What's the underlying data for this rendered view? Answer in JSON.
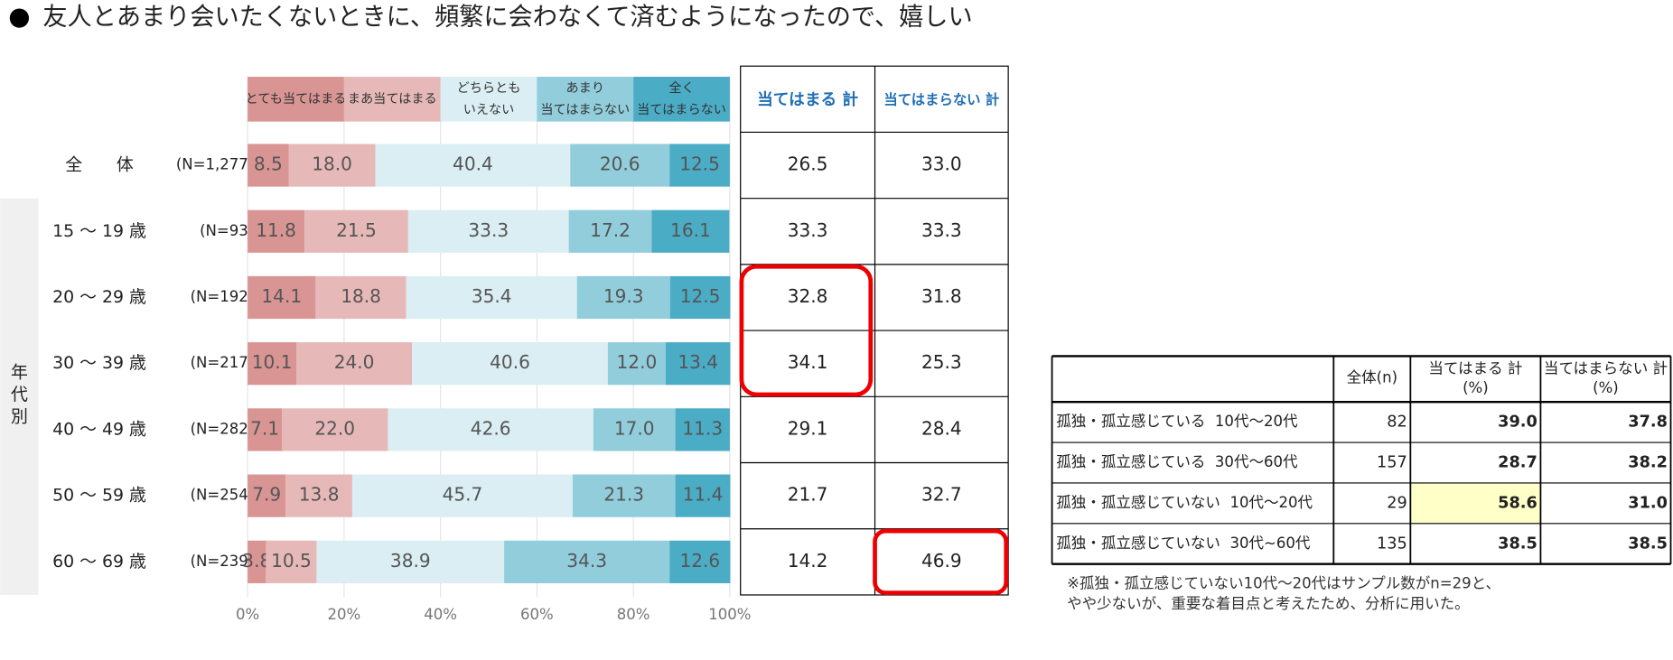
{
  "chart_data": {
    "type": "bar",
    "orientation": "horizontal",
    "stacked": true,
    "title": "友人とあまり会いたくないときに、頻繁に会わなくて済むようになったので、嬉しい",
    "categories": [
      "全　　体",
      "15 ～ 19 歳",
      "20 ～ 29 歳",
      "30 ～ 39 歳",
      "40 ～ 49 歳",
      "50 ～ 59 歳",
      "60 ～ 69 歳"
    ],
    "n_labels": [
      "(N=1,277)",
      "(N=93)",
      "(N=192)",
      "(N=217)",
      "(N=282)",
      "(N=254)",
      "(N=239)"
    ],
    "group_label": "年代別",
    "series": [
      {
        "name": "とても当てはまる",
        "color": "#d99594",
        "values": [
          8.5,
          11.8,
          14.1,
          10.1,
          7.1,
          7.9,
          3.8
        ]
      },
      {
        "name": "まあ当てはまる",
        "color": "#e6b9b8",
        "values": [
          18.0,
          21.5,
          18.8,
          24.0,
          22.0,
          13.8,
          10.5
        ],
        "value_labels": [
          "18.0",
          "21.5",
          "18.8",
          "24.0",
          "22.0",
          "13.8",
          "10.5"
        ]
      },
      {
        "name": "どちらとも\nいえない",
        "color": "#daeef3",
        "values": [
          40.4,
          33.3,
          35.4,
          40.6,
          42.6,
          45.7,
          38.9
        ]
      },
      {
        "name": "あまり\n当てはまらない",
        "color": "#92cddc",
        "values": [
          20.6,
          17.2,
          19.3,
          12.0,
          17.0,
          21.3,
          34.3
        ],
        "value_labels": [
          "20.6",
          "17.2",
          "19.3",
          "12.0",
          "17.0",
          "21.3",
          "34.3"
        ]
      },
      {
        "name": "全く\n当てはまらない",
        "color": "#4bacc6",
        "values": [
          12.5,
          16.1,
          12.5,
          13.4,
          11.3,
          11.4,
          12.6
        ]
      }
    ],
    "xlim": [
      0,
      100
    ],
    "xticks": [
      {
        "value": 0,
        "label": "0%"
      },
      {
        "value": 20,
        "label": "20%"
      },
      {
        "value": 40,
        "label": "40%"
      },
      {
        "value": 60,
        "label": "60%"
      },
      {
        "value": 80,
        "label": "80%"
      },
      {
        "value": 100,
        "label": "100%"
      }
    ],
    "grid": true
  },
  "summary_table": {
    "columns": [
      "当てはまる 計",
      "当てはまらない 計"
    ],
    "rows": [
      [
        "26.5",
        "33.0"
      ],
      [
        "33.3",
        "33.3"
      ],
      [
        "32.8",
        "31.8"
      ],
      [
        "34.1",
        "25.3"
      ],
      [
        "29.1",
        "28.4"
      ],
      [
        "21.7",
        "32.7"
      ],
      [
        "14.2",
        "46.9"
      ]
    ]
  },
  "comparison_table": {
    "columns": [
      "全体(n)",
      "当てはまる 計\n(%)",
      "当てはまらない 計\n(%)"
    ],
    "rows": [
      [
        "孤独・孤立感じている  10代～20代",
        "82",
        "39.0",
        "37.8"
      ],
      [
        "孤独・孤立感じている  30代～60代",
        "157",
        "28.7",
        "38.2"
      ],
      [
        "孤独・孤立感じていない  10代～20代",
        "29",
        "58.6",
        "31.0"
      ],
      [
        "孤独・孤立感じていない  30代~60代",
        "135",
        "38.5",
        "38.5"
      ]
    ]
  },
  "note": "※孤独・孤立感じていない10代～20代はサンプル数がn=29と、\nやや少ないが、重要な着目点と考えたため、分析に用いた。"
}
